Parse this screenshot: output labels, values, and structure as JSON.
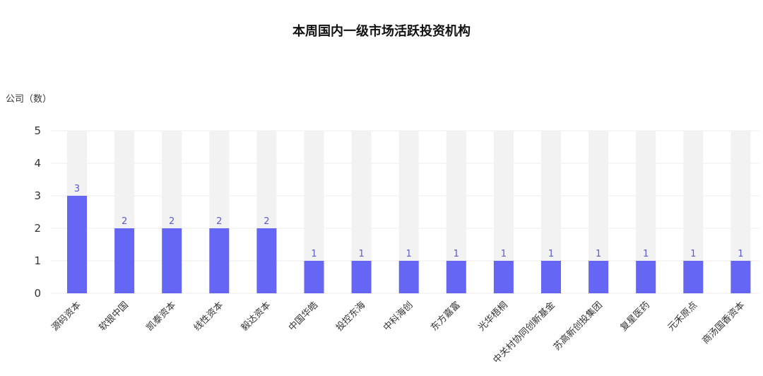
{
  "chart_data": {
    "type": "bar",
    "title": "本周国内一级市场活跃投资机构",
    "ylabel": "公司（数）",
    "ylim": [
      0,
      5
    ],
    "yticks": [
      0,
      1,
      2,
      3,
      4,
      5
    ],
    "categories": [
      "源码资本",
      "软银中国",
      "凯泰资本",
      "线性资本",
      "毅达资本",
      "中国华皓",
      "投控东海",
      "中科海创",
      "东方嘉富",
      "光华梧桐",
      "中关村协同创新基金",
      "苏高新创投集团",
      "复星医药",
      "元禾原点",
      "商汤国香资本"
    ],
    "values": [
      3,
      2,
      2,
      2,
      2,
      1,
      1,
      1,
      1,
      1,
      1,
      1,
      1,
      1,
      1
    ],
    "background_bar_value": 5,
    "grid": true,
    "legend": "none"
  },
  "colors": {
    "bar": "#6666f4",
    "track": "#f2f2f2",
    "value_label": "#5b5bd6",
    "grid": "#eeeeee"
  }
}
